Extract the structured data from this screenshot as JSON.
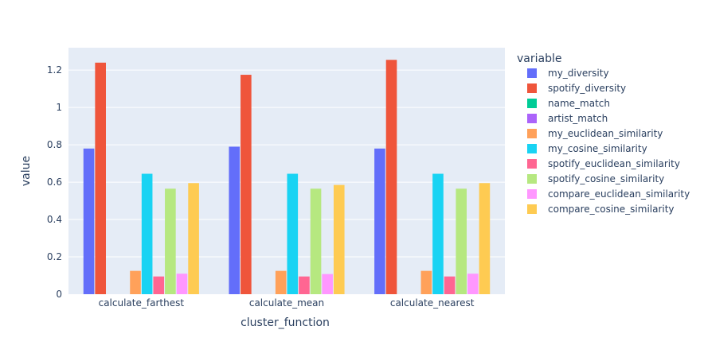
{
  "chart_data": {
    "type": "bar",
    "title": "",
    "xlabel": "cluster_function",
    "ylabel": "value",
    "ylim": [
      0,
      1.32
    ],
    "yticks": [
      0,
      0.2,
      0.4,
      0.6,
      0.8,
      1,
      1.2
    ],
    "ytick_labels": [
      "0",
      "0.2",
      "0.4",
      "0.6",
      "0.8",
      "1",
      "1.2"
    ],
    "grid": true,
    "legend_placement": "right",
    "legend_title": "variable",
    "plot_background": "#E5ECF6",
    "categories": [
      "calculate_farthest",
      "calculate_mean",
      "calculate_nearest"
    ],
    "series": [
      {
        "name": "my_diversity",
        "color": "#636EFA",
        "values": [
          0.78,
          0.79,
          0.78
        ]
      },
      {
        "name": "spotify_diversity",
        "color": "#EF553B",
        "values": [
          1.24,
          1.175,
          1.255
        ]
      },
      {
        "name": "name_match",
        "color": "#00CC96",
        "values": [
          0,
          0,
          0
        ]
      },
      {
        "name": "artist_match",
        "color": "#AB63FA",
        "values": [
          0,
          0,
          0
        ]
      },
      {
        "name": "my_euclidean_similarity",
        "color": "#FFA15A",
        "values": [
          0.125,
          0.125,
          0.125
        ]
      },
      {
        "name": "my_cosine_similarity",
        "color": "#19D3F3",
        "values": [
          0.645,
          0.645,
          0.645
        ]
      },
      {
        "name": "spotify_euclidean_similarity",
        "color": "#FF6692",
        "values": [
          0.095,
          0.095,
          0.095
        ]
      },
      {
        "name": "spotify_cosine_similarity",
        "color": "#B6E880",
        "values": [
          0.565,
          0.565,
          0.565
        ]
      },
      {
        "name": "compare_euclidean_similarity",
        "color": "#FF97FF",
        "values": [
          0.11,
          0.108,
          0.11
        ]
      },
      {
        "name": "compare_cosine_similarity",
        "color": "#FECB52",
        "values": [
          0.595,
          0.585,
          0.595
        ]
      }
    ]
  }
}
